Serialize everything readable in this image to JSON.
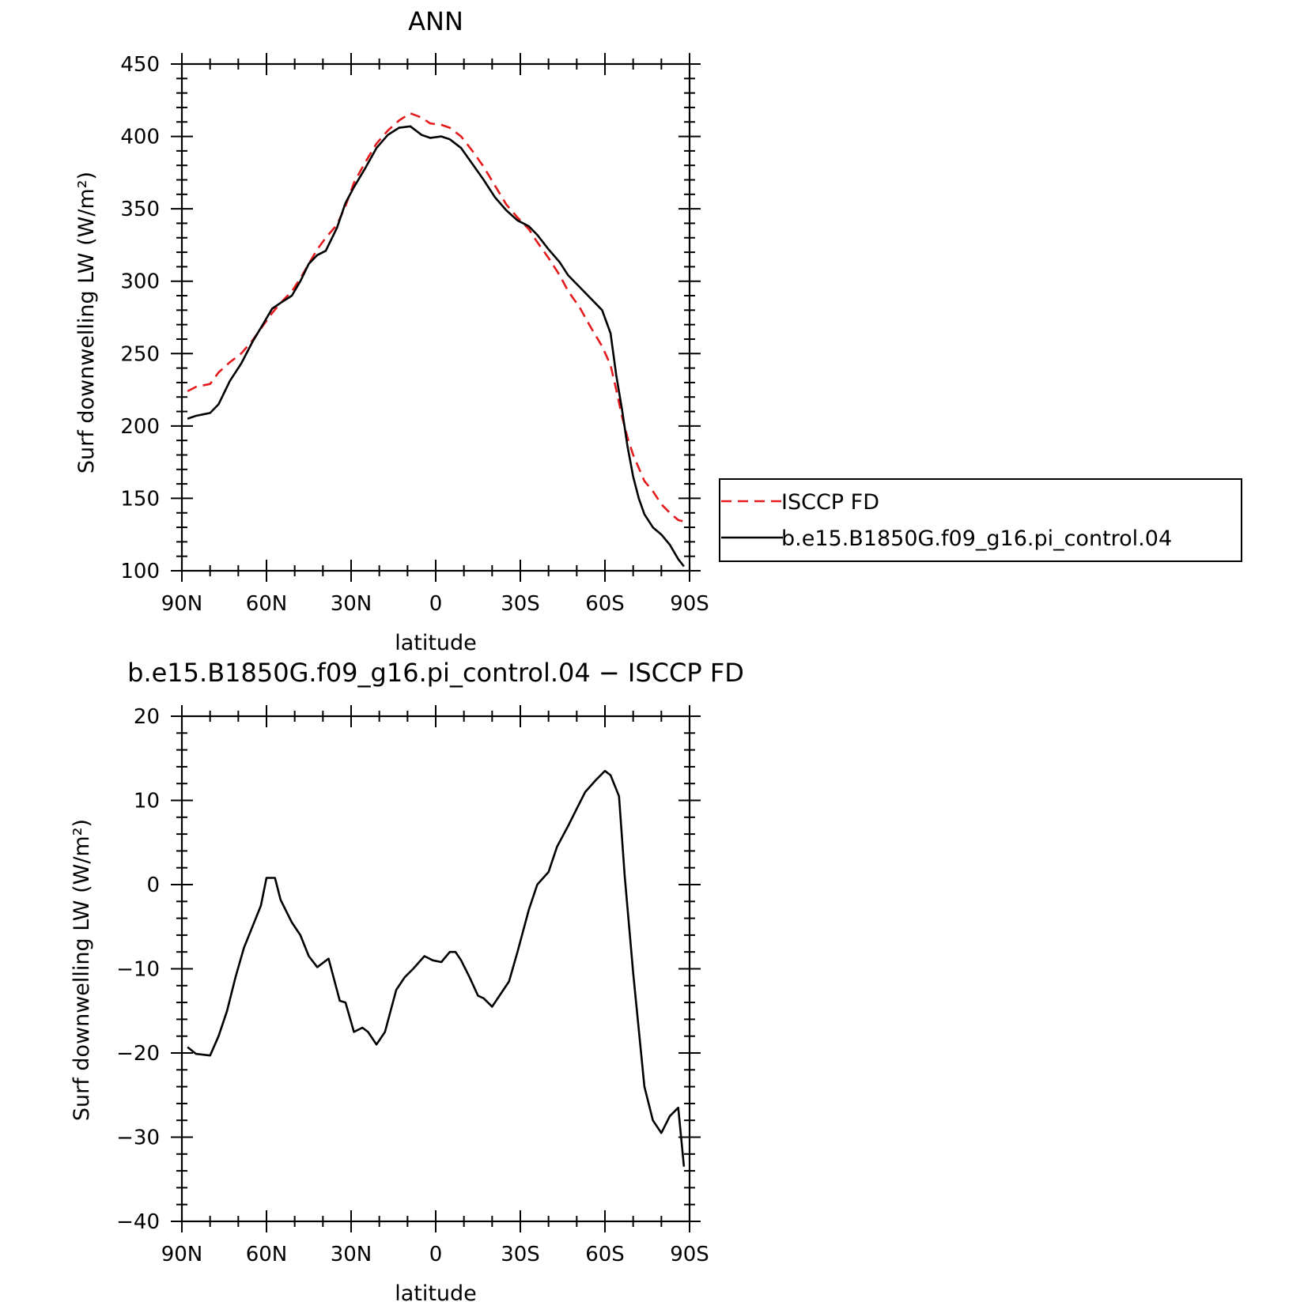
{
  "chart_data": [
    {
      "type": "line",
      "title": "ANN",
      "xlabel": "latitude",
      "ylabel": "Surf downwelling LW (W/m²)",
      "ylim": [
        100,
        450
      ],
      "yticks": [
        100,
        150,
        200,
        250,
        300,
        350,
        400,
        450
      ],
      "xlim": [
        90,
        -90
      ],
      "xticks": [
        90,
        60,
        30,
        0,
        -30,
        -60,
        -90
      ],
      "xtick_labels": [
        "90N",
        "60N",
        "30N",
        "0",
        "30S",
        "60S",
        "90S"
      ],
      "legend": {
        "placement": "right"
      },
      "x": [
        88,
        85,
        80,
        77,
        73,
        69,
        65,
        61,
        58,
        55,
        51,
        48,
        45,
        42,
        39,
        35,
        32,
        29,
        25,
        21,
        17,
        13,
        9,
        5,
        2,
        -2,
        -5,
        -9,
        -13,
        -17,
        -21,
        -25,
        -29,
        -33,
        -36,
        -40,
        -44,
        -47,
        -51,
        -55,
        -59,
        -62,
        -64,
        -66,
        -68,
        -70,
        -72,
        -74,
        -77,
        -80,
        -83,
        -86,
        -88
      ],
      "series": [
        {
          "name": "ISCCP FD",
          "color": "#e41a1c",
          "dash": "dashed",
          "values": [
            224,
            227,
            229,
            237,
            244,
            250,
            259,
            270,
            278,
            285,
            293,
            302,
            312,
            322,
            330,
            339,
            352,
            368,
            382,
            395,
            404,
            411,
            416,
            413,
            409,
            408,
            406,
            400,
            390,
            379,
            366,
            353,
            344,
            336,
            327,
            316,
            304,
            293,
            282,
            268,
            255,
            242,
            225,
            207,
            192,
            180,
            171,
            162,
            155,
            146,
            140,
            135,
            134
          ]
        },
        {
          "name": "b.e15.B1850G.f09_g16.pi_control.04",
          "color": "#000000",
          "dash": "solid",
          "values": [
            205,
            207,
            209,
            215,
            231,
            243,
            258,
            271,
            281,
            285,
            290,
            300,
            312,
            318,
            321,
            337,
            354,
            365,
            378,
            392,
            401,
            406,
            407,
            401,
            399,
            400,
            398,
            392,
            381,
            370,
            358,
            349,
            342,
            338,
            332,
            322,
            313,
            304,
            296,
            288,
            280,
            264,
            235,
            212,
            186,
            165,
            150,
            139,
            130,
            125,
            118,
            108,
            103
          ]
        }
      ]
    },
    {
      "type": "line",
      "title": "b.e15.B1850G.f09_g16.pi_control.04 − ISCCP FD",
      "xlabel": "latitude",
      "ylabel": "Surf downwelling LW (W/m²)",
      "ylim": [
        -40,
        20
      ],
      "yticks": [
        -40,
        -30,
        -20,
        -10,
        0,
        10,
        20
      ],
      "xlim": [
        90,
        -90
      ],
      "xticks": [
        90,
        60,
        30,
        0,
        -30,
        -60,
        -90
      ],
      "xtick_labels": [
        "90N",
        "60N",
        "30N",
        "0",
        "30S",
        "60S",
        "90S"
      ],
      "x": [
        88,
        85,
        80,
        77,
        74,
        71,
        68,
        65,
        62,
        60,
        57,
        55,
        51,
        48,
        45,
        42,
        38,
        34,
        32,
        29,
        26,
        24,
        21,
        18,
        14,
        11,
        8,
        4,
        1,
        -2,
        -5,
        -7,
        -9,
        -12,
        -15,
        -17,
        -20,
        -23,
        -26,
        -29,
        -33,
        -36,
        -40,
        -43,
        -47,
        -50,
        -53,
        -57,
        -60,
        -62,
        -65,
        -67,
        -70,
        -74,
        -77,
        -80,
        -83,
        -86,
        -88
      ],
      "series": [
        {
          "name": "",
          "color": "#000000",
          "dash": "solid",
          "values": [
            -19.3,
            -20.1,
            -20.3,
            -18.0,
            -15.0,
            -11.0,
            -7.5,
            -5.0,
            -2.5,
            0.8,
            0.8,
            -1.8,
            -4.5,
            -6.0,
            -8.5,
            -9.8,
            -8.8,
            -13.8,
            -14.0,
            -17.5,
            -17.0,
            -17.5,
            -19.0,
            -17.5,
            -12.5,
            -11.0,
            -10.0,
            -8.5,
            -9.0,
            -9.2,
            -8.0,
            -8.0,
            -9.0,
            -11.0,
            -13.2,
            -13.5,
            -14.5,
            -13.0,
            -11.5,
            -8.0,
            -3.0,
            0.0,
            1.5,
            4.5,
            7.0,
            9.0,
            11.0,
            12.5,
            13.5,
            13.0,
            10.5,
            1.0,
            -10.5,
            -24.0,
            -28.0,
            -29.5,
            -27.5,
            -26.5,
            -33.5
          ]
        }
      ]
    }
  ]
}
